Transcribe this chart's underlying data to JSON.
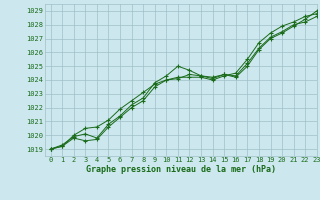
{
  "title": "Graphe pression niveau de la mer (hPa)",
  "xlim": [
    -0.5,
    23
  ],
  "ylim": [
    1018.5,
    1029.5
  ],
  "yticks": [
    1019,
    1020,
    1021,
    1022,
    1023,
    1024,
    1025,
    1026,
    1027,
    1028,
    1029
  ],
  "xticks": [
    0,
    1,
    2,
    3,
    4,
    5,
    6,
    7,
    8,
    9,
    10,
    11,
    12,
    13,
    14,
    15,
    16,
    17,
    18,
    19,
    20,
    21,
    22,
    23
  ],
  "bg_color": "#cce8ee",
  "grid_color": "#9fbfc8",
  "line_color": "#1a6b1a",
  "marker_color": "#1a6b1a",
  "title_color": "#1a6b1a",
  "tick_label_color": "#1a6b1a",
  "series1_x": [
    0,
    1,
    2,
    3,
    4,
    5,
    6,
    7,
    8,
    9,
    10,
    11,
    12,
    13,
    14,
    15,
    16,
    17,
    18,
    19,
    20,
    21,
    22,
    23
  ],
  "series1_y": [
    1019.0,
    1019.3,
    1019.9,
    1020.1,
    1019.8,
    1020.8,
    1021.4,
    1022.2,
    1022.7,
    1023.8,
    1024.3,
    1025.0,
    1024.7,
    1024.3,
    1024.2,
    1024.4,
    1024.3,
    1025.2,
    1026.3,
    1027.1,
    1027.5,
    1028.0,
    1028.2,
    1028.6
  ],
  "series2_x": [
    0,
    1,
    2,
    3,
    4,
    5,
    6,
    7,
    8,
    9,
    10,
    11,
    12,
    13,
    14,
    15,
    16,
    17,
    18,
    19,
    20,
    21,
    22,
    23
  ],
  "series2_y": [
    1019.0,
    1019.2,
    1019.8,
    1019.6,
    1019.7,
    1020.6,
    1021.3,
    1022.0,
    1022.5,
    1023.5,
    1024.0,
    1024.1,
    1024.4,
    1024.3,
    1024.1,
    1024.4,
    1024.2,
    1025.0,
    1026.2,
    1027.0,
    1027.4,
    1027.9,
    1028.4,
    1029.0
  ],
  "series3_x": [
    0,
    1,
    2,
    3,
    4,
    5,
    6,
    7,
    8,
    9,
    10,
    11,
    12,
    13,
    14,
    15,
    16,
    17,
    18,
    19,
    20,
    21,
    22,
    23
  ],
  "series3_y": [
    1019.0,
    1019.2,
    1020.0,
    1020.5,
    1020.6,
    1021.1,
    1021.9,
    1022.5,
    1023.1,
    1023.7,
    1024.0,
    1024.2,
    1024.2,
    1024.2,
    1024.0,
    1024.3,
    1024.5,
    1025.5,
    1026.7,
    1027.4,
    1027.9,
    1028.2,
    1028.6,
    1028.8
  ]
}
